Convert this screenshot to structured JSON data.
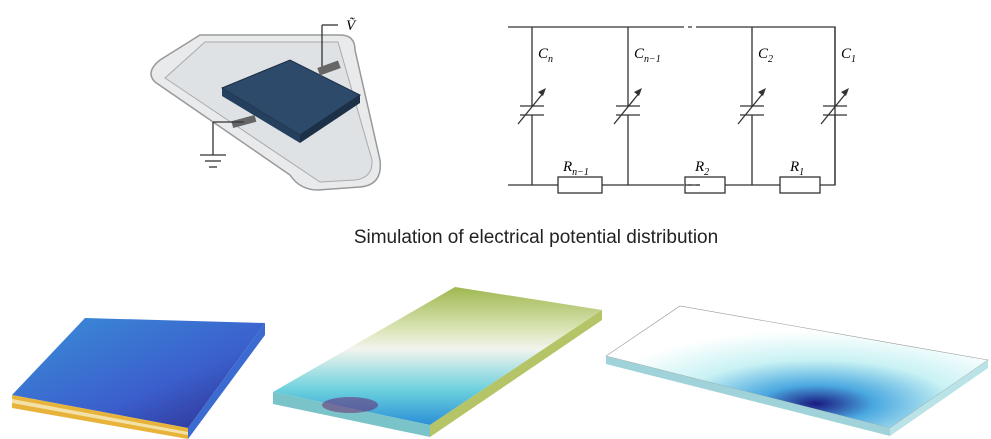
{
  "device": {
    "voltage_label": "Ṽ"
  },
  "circuit": {
    "capacitors": [
      {
        "main": "C",
        "sub": "n"
      },
      {
        "main": "C",
        "sub": "n−1"
      },
      {
        "main": "C",
        "sub": "2"
      },
      {
        "main": "C",
        "sub": "1"
      }
    ],
    "resistors": [
      {
        "main": "R",
        "sub": "n−1"
      },
      {
        "main": "R",
        "sub": "2"
      },
      {
        "main": "R",
        "sub": "1"
      }
    ]
  },
  "caption": "Simulation of electrical potential distribution"
}
